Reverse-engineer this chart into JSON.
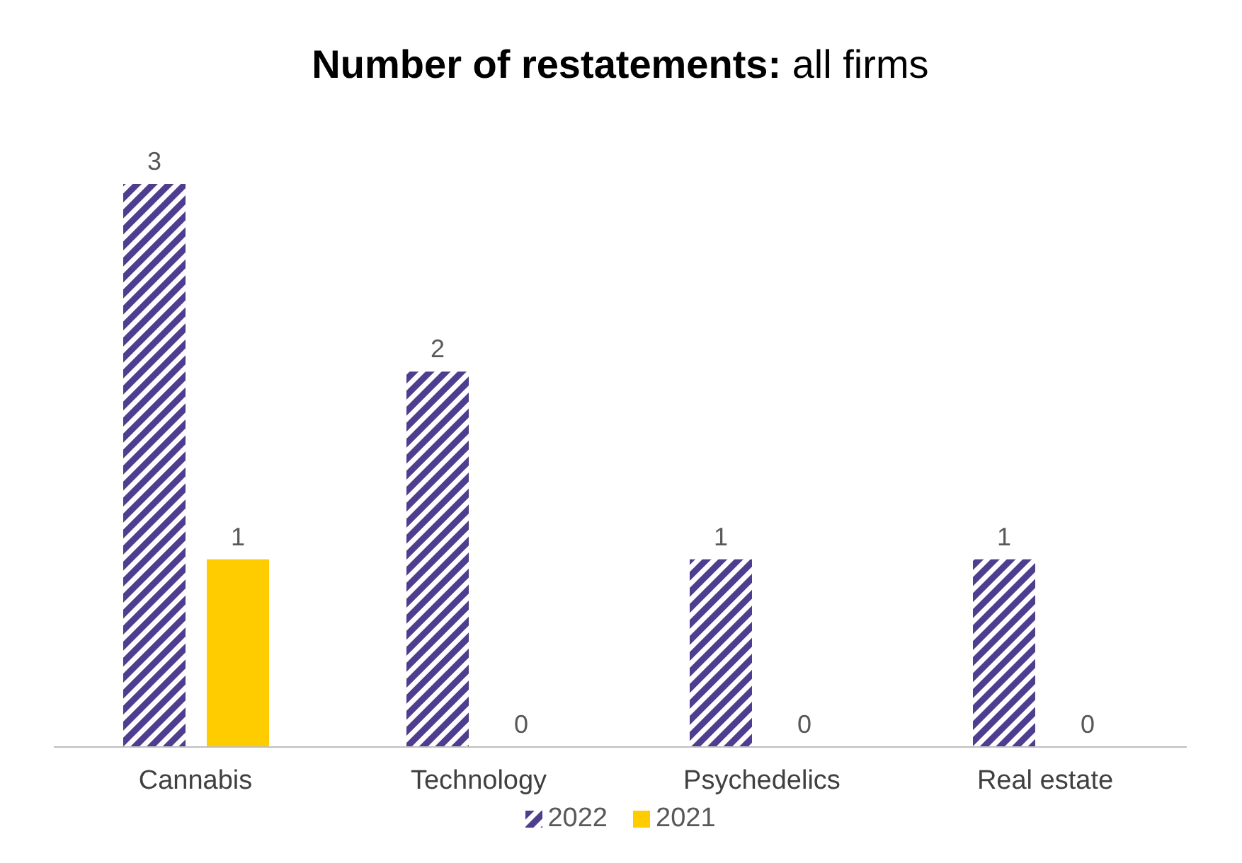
{
  "chart_data": {
    "type": "bar",
    "title": "Number of restatements: all firms",
    "categories": [
      "Cannabis",
      "Technology",
      "Psychedelics",
      "Real estate"
    ],
    "series": [
      {
        "name": "2022",
        "color": "#4f3d8f",
        "values": [
          3,
          2,
          1,
          1
        ]
      },
      {
        "name": "2021",
        "color": "#ffcc00",
        "values": [
          1,
          0,
          0,
          0
        ]
      }
    ],
    "data_labels": true,
    "legend": "bottom",
    "grid": false
  }
}
